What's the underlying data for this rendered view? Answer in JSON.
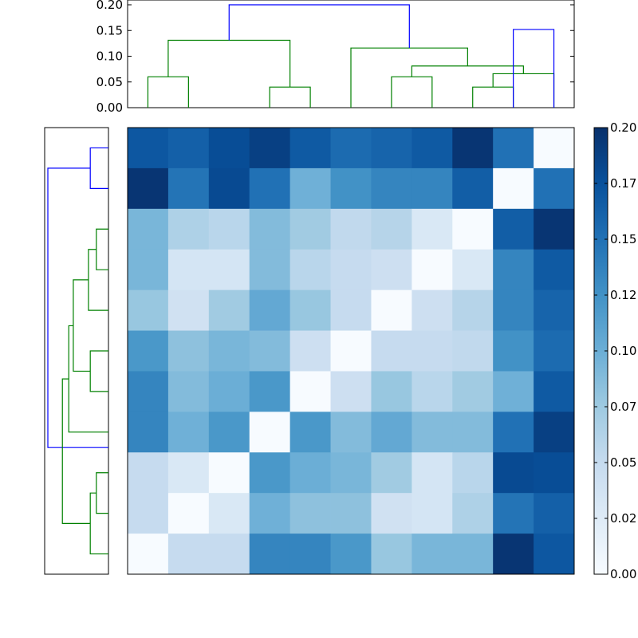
{
  "chart_data": [
    {
      "type": "heatmap",
      "title": "",
      "xlabel": "",
      "ylabel": "",
      "rows": 11,
      "cols": 11,
      "colormap": "Blues",
      "vmin": 0.0,
      "vmax": 0.2,
      "matrix": [
        [
          0.17,
          0.163,
          0.178,
          0.188,
          0.168,
          0.155,
          0.16,
          0.168,
          0.196,
          0.15,
          0.0
        ],
        [
          0.196,
          0.148,
          0.18,
          0.15,
          0.098,
          0.125,
          0.135,
          0.135,
          0.165,
          0.0,
          0.15
        ],
        [
          0.093,
          0.065,
          0.058,
          0.088,
          0.073,
          0.053,
          0.06,
          0.03,
          0.0,
          0.165,
          0.196
        ],
        [
          0.093,
          0.035,
          0.035,
          0.088,
          0.058,
          0.05,
          0.043,
          0.0,
          0.03,
          0.135,
          0.168
        ],
        [
          0.078,
          0.04,
          0.073,
          0.105,
          0.078,
          0.05,
          0.0,
          0.043,
          0.06,
          0.135,
          0.16
        ],
        [
          0.12,
          0.083,
          0.093,
          0.088,
          0.043,
          0.0,
          0.05,
          0.05,
          0.053,
          0.125,
          0.155
        ],
        [
          0.135,
          0.088,
          0.1,
          0.12,
          0.0,
          0.043,
          0.078,
          0.058,
          0.073,
          0.098,
          0.168
        ],
        [
          0.135,
          0.098,
          0.12,
          0.0,
          0.12,
          0.088,
          0.105,
          0.088,
          0.088,
          0.15,
          0.188
        ],
        [
          0.05,
          0.03,
          0.0,
          0.12,
          0.1,
          0.093,
          0.073,
          0.035,
          0.058,
          0.18,
          0.178
        ],
        [
          0.05,
          0.0,
          0.03,
          0.098,
          0.083,
          0.083,
          0.04,
          0.035,
          0.065,
          0.148,
          0.163
        ],
        [
          0.0,
          0.05,
          0.05,
          0.135,
          0.135,
          0.12,
          0.078,
          0.093,
          0.093,
          0.196,
          0.17
        ]
      ]
    },
    {
      "type": "dendrogram",
      "orientation": "top",
      "leaves": 11,
      "ylim": [
        0,
        0.2
      ],
      "yticks": [
        "0.00",
        "0.05",
        "0.10",
        "0.15",
        "0.20"
      ],
      "colors": {
        "cluster": "#008000",
        "link": "#0000ff"
      },
      "links": [
        {
          "left": 5.0,
          "right": 15.0,
          "height": 0.06,
          "color": "cluster"
        },
        {
          "left": 35.0,
          "right": 45.0,
          "height": 0.04,
          "color": "cluster"
        },
        {
          "left": 10.0,
          "right": 40.0,
          "height": 0.131,
          "color": "cluster"
        },
        {
          "left": 65.0,
          "right": 75.0,
          "height": 0.06,
          "color": "cluster"
        },
        {
          "left": 85.0,
          "right": 95.0,
          "height": 0.04,
          "color": "cluster"
        },
        {
          "left": 90.0,
          "right": 105.0,
          "height": 0.066,
          "color": "cluster"
        },
        {
          "left": 70.0,
          "right": 97.5,
          "height": 0.081,
          "color": "cluster"
        },
        {
          "left": 55.0,
          "right": 83.75,
          "height": 0.116,
          "color": "cluster"
        },
        {
          "left": 25.0,
          "right": 69.4,
          "height": 0.2,
          "color": "link"
        },
        {
          "left": 95.0,
          "right": 105.0,
          "height": 0.152,
          "color": "link"
        }
      ]
    },
    {
      "type": "dendrogram",
      "orientation": "left",
      "leaves": 11,
      "xlim": [
        0,
        0.2
      ],
      "colors": {
        "cluster": "#008000",
        "link": "#0000ff"
      },
      "links": [
        {
          "left": 5.0,
          "right": 15.0,
          "height": 0.06,
          "color": "link"
        },
        {
          "left": 10.0,
          "right": 78.8,
          "height": 0.2,
          "color": "link"
        },
        {
          "left": 25.0,
          "right": 35.0,
          "height": 0.04,
          "color": "cluster"
        },
        {
          "left": 30.0,
          "right": 45.0,
          "height": 0.066,
          "color": "cluster"
        },
        {
          "left": 55.0,
          "right": 65.0,
          "height": 0.06,
          "color": "cluster"
        },
        {
          "left": 37.5,
          "right": 60.0,
          "height": 0.116,
          "color": "cluster"
        },
        {
          "left": 48.8,
          "right": 75.0,
          "height": 0.131,
          "color": "cluster"
        },
        {
          "left": 85.0,
          "right": 95.0,
          "height": 0.04,
          "color": "cluster"
        },
        {
          "left": 90.0,
          "right": 105.0,
          "height": 0.06,
          "color": "cluster"
        },
        {
          "left": 61.9,
          "right": 97.5,
          "height": 0.152,
          "color": "cluster"
        }
      ]
    },
    {
      "type": "colorbar",
      "vmin": 0.0,
      "vmax": 0.2,
      "ticks": [
        {
          "value": 0.0,
          "label": "0.00"
        },
        {
          "value": 0.025,
          "label": "0.02"
        },
        {
          "value": 0.05,
          "label": "0.05"
        },
        {
          "value": 0.075,
          "label": "0.07"
        },
        {
          "value": 0.1,
          "label": "0.10"
        },
        {
          "value": 0.125,
          "label": "0.12"
        },
        {
          "value": 0.15,
          "label": "0.15"
        },
        {
          "value": 0.175,
          "label": "0.17"
        },
        {
          "value": 0.2,
          "label": "0.20"
        }
      ]
    }
  ]
}
